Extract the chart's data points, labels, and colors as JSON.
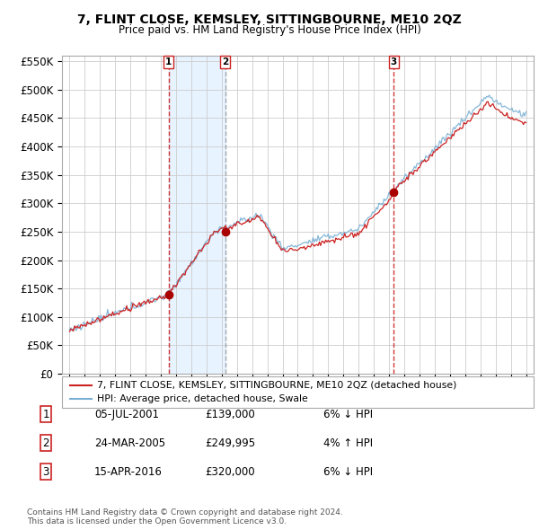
{
  "title": "7, FLINT CLOSE, KEMSLEY, SITTINGBOURNE, ME10 2QZ",
  "subtitle": "Price paid vs. HM Land Registry's House Price Index (HPI)",
  "ylim": [
    0,
    560000
  ],
  "yticks": [
    0,
    50000,
    100000,
    150000,
    200000,
    250000,
    300000,
    350000,
    400000,
    450000,
    500000,
    550000
  ],
  "ytick_labels": [
    "£0",
    "£50K",
    "£100K",
    "£150K",
    "£200K",
    "£250K",
    "£300K",
    "£350K",
    "£400K",
    "£450K",
    "£500K",
    "£550K"
  ],
  "hpi_color": "#7ab0d4",
  "price_color": "#cc2222",
  "marker_color": "#aa0000",
  "vline_color_solid": "#cc2222",
  "vline_color_dashed": "#888888",
  "shade_color": "#ddeeff",
  "background_color": "#ffffff",
  "plot_bg_color": "#ffffff",
  "grid_color": "#cccccc",
  "transactions": [
    {
      "date_x": 2001.51,
      "price": 139000,
      "label": "1",
      "date_str": "05-JUL-2001",
      "price_str": "£139,000",
      "pct": "6%",
      "dir": "↓",
      "rel": "HPI",
      "vline_style": "solid_red"
    },
    {
      "date_x": 2005.23,
      "price": 249995,
      "label": "2",
      "date_str": "24-MAR-2005",
      "price_str": "£249,995",
      "pct": "4%",
      "dir": "↑",
      "rel": "HPI",
      "vline_style": "dashed_gray"
    },
    {
      "date_x": 2016.29,
      "price": 320000,
      "label": "3",
      "date_str": "15-APR-2016",
      "price_str": "£320,000",
      "pct": "6%",
      "dir": "↓",
      "rel": "HPI",
      "vline_style": "solid_red"
    }
  ],
  "legend_property_label": "7, FLINT CLOSE, KEMSLEY, SITTINGBOURNE, ME10 2QZ (detached house)",
  "legend_hpi_label": "HPI: Average price, detached house, Swale",
  "footnote": "Contains HM Land Registry data © Crown copyright and database right 2024.\nThis data is licensed under the Open Government Licence v3.0.",
  "xmin": 1994.5,
  "xmax": 2025.5,
  "shade_x1": 2001.51,
  "shade_x2": 2005.23
}
